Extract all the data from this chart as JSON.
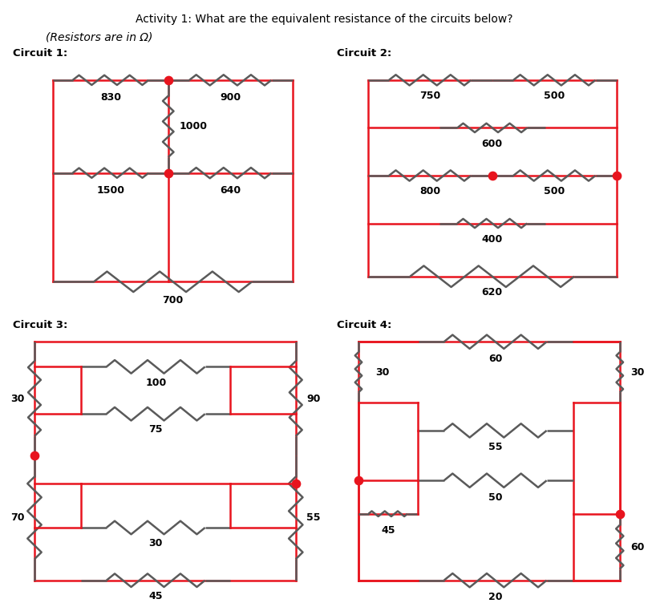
{
  "title": "Activity 1: What are the equivalent resistance of the circuits below?",
  "subtitle": "(Resistors are in Ω)",
  "circuit_color": "#e8141e",
  "wire_color": "#5a5a5a",
  "dot_color": "#e8141e",
  "text_color": "#000000",
  "background": "#ffffff",
  "c1_label": "Circuit 1:",
  "c2_label": "Circuit 2:",
  "c3_label": "Circuit 3:",
  "c4_label": "Circuit 4:"
}
